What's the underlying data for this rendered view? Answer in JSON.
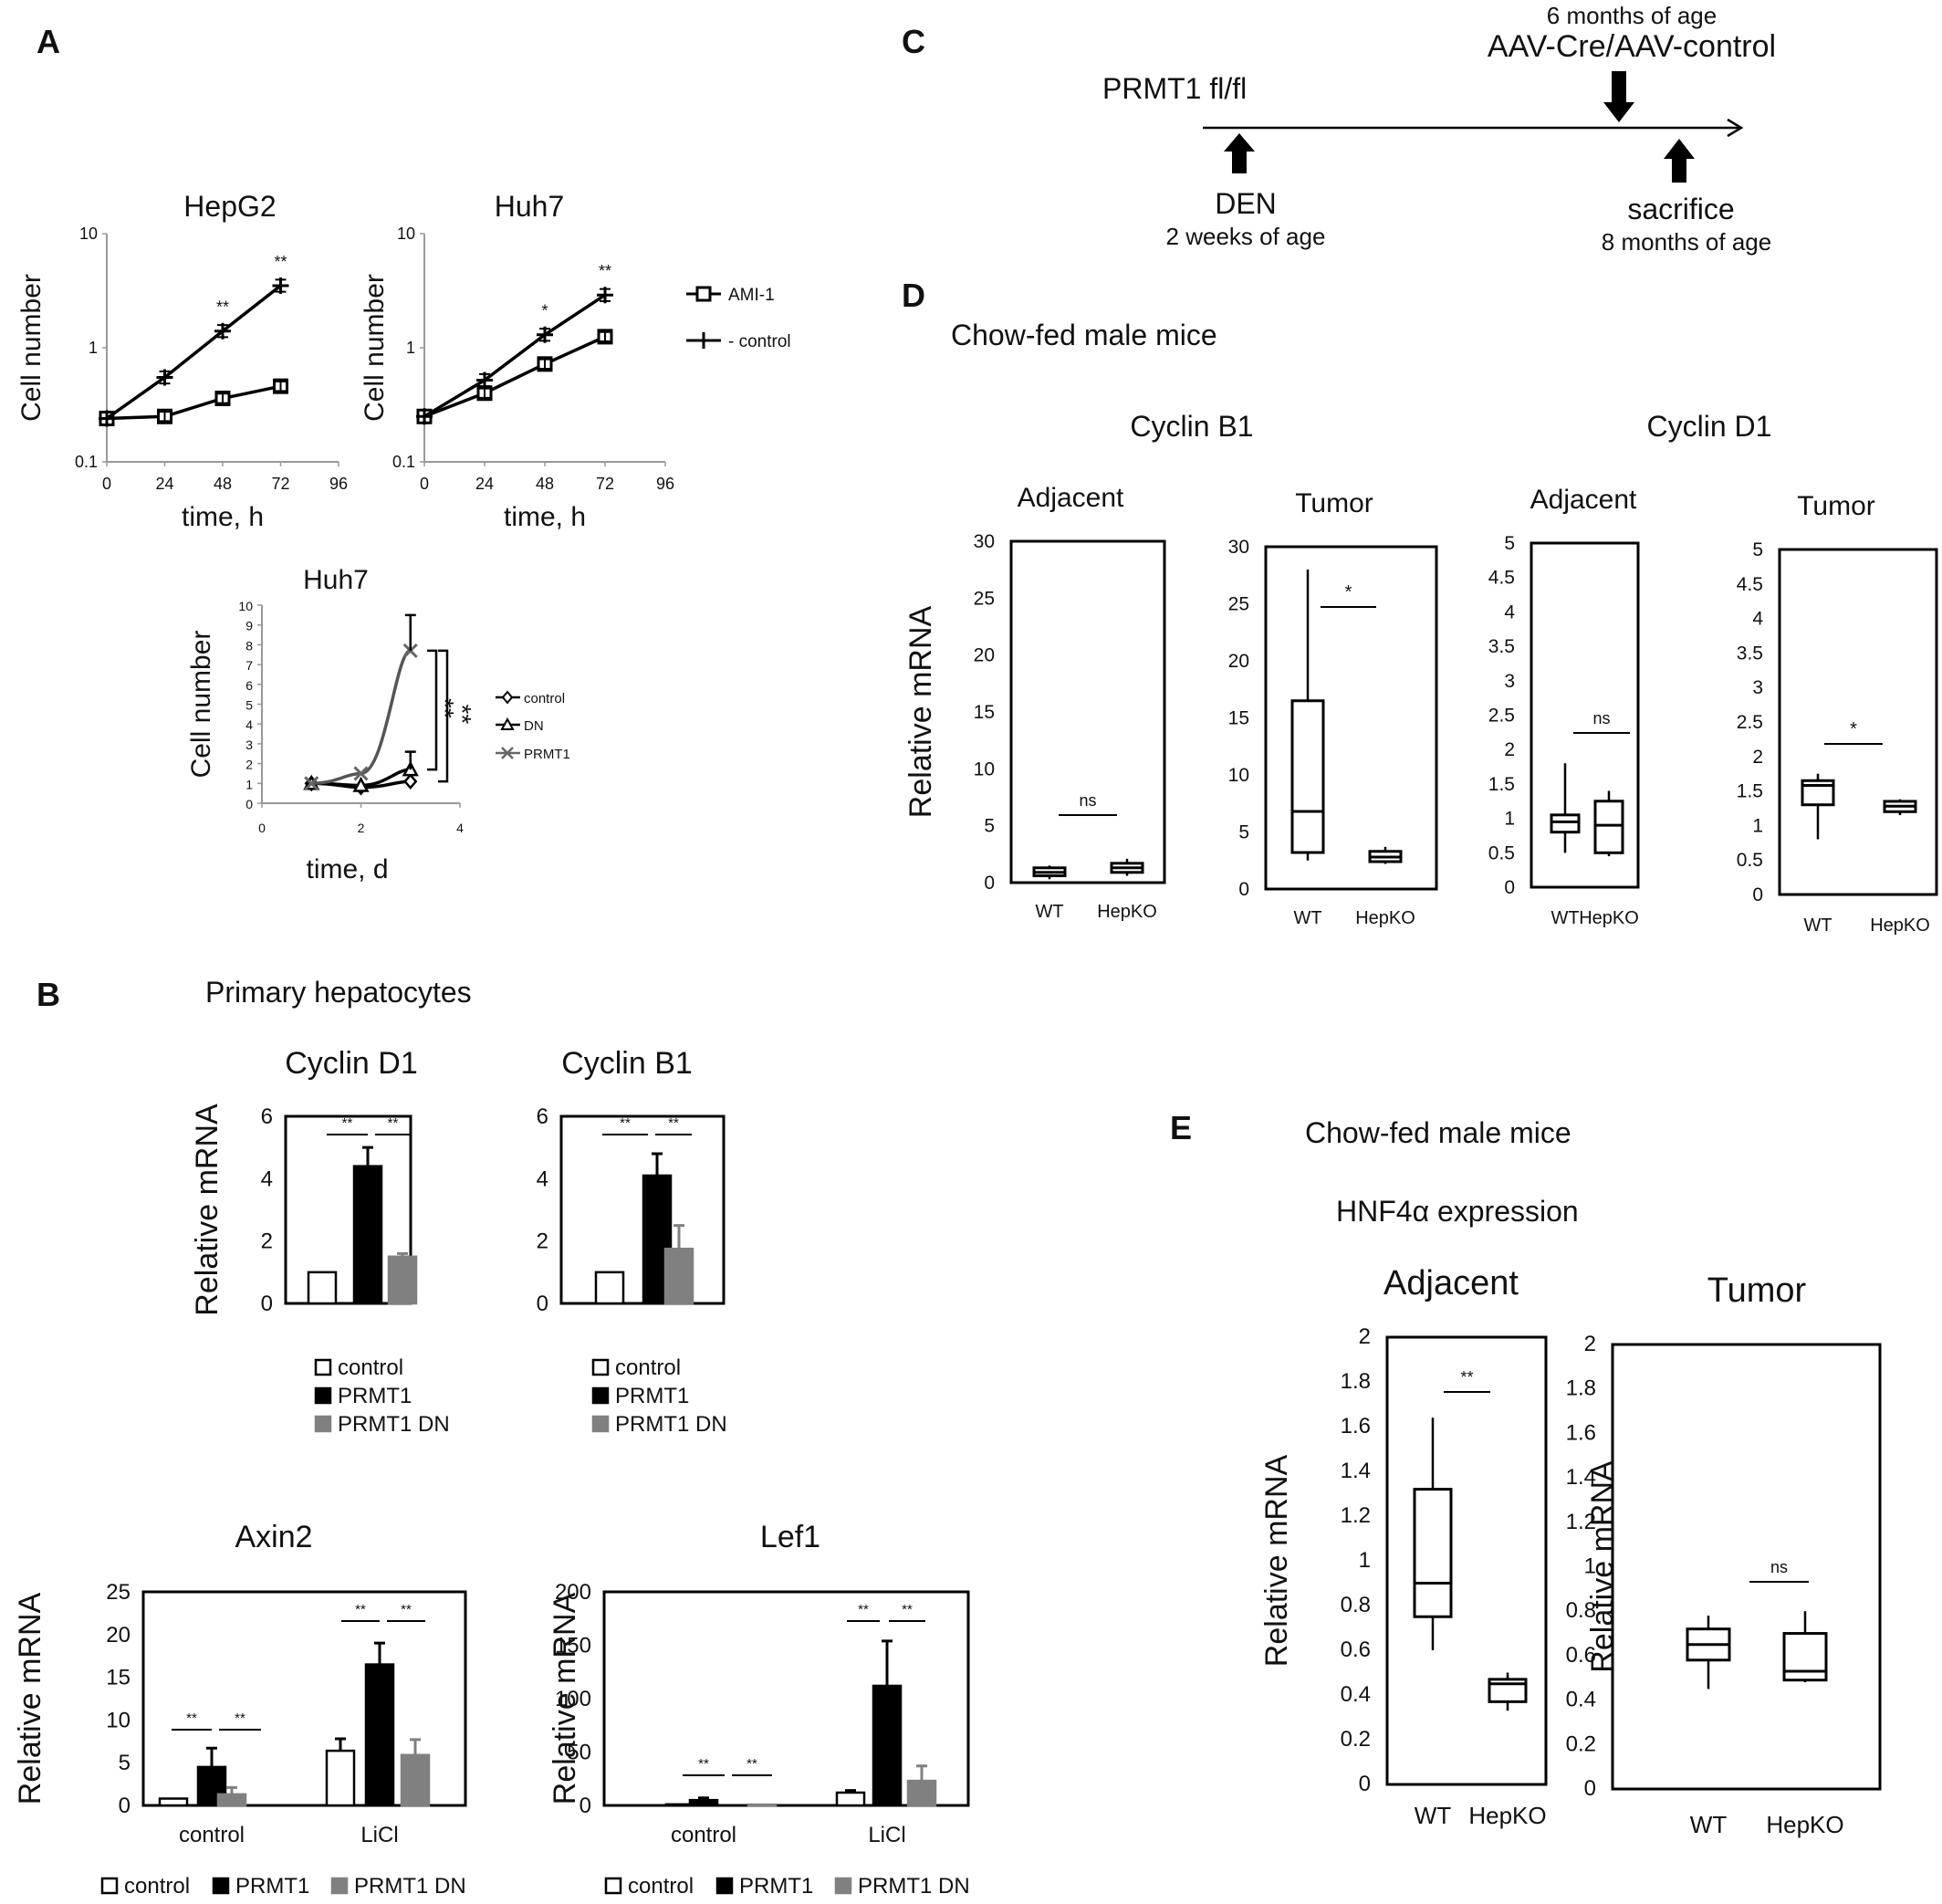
{
  "panels": {
    "A": "A",
    "B": "B",
    "C": "C",
    "D": "D",
    "E": "E"
  },
  "chart_data": [
    {
      "id": "A1",
      "type": "line",
      "title": "HepG2",
      "xlabel": "time, h",
      "ylabel": "Cell number",
      "yscale": "log",
      "xlim": [
        0,
        96
      ],
      "ylim": [
        0.1,
        10
      ],
      "xticks": [
        "0",
        "24",
        "48",
        "72",
        "96"
      ],
      "yticks": [
        "0.1",
        "1",
        "10"
      ],
      "x": [
        0,
        24,
        48,
        72
      ],
      "series": [
        {
          "name": "AMI-1",
          "values": [
            0.24,
            0.25,
            0.36,
            0.46
          ],
          "marker": "square"
        },
        {
          "name": "- control",
          "values": [
            0.24,
            0.55,
            1.4,
            3.5
          ],
          "marker": "plus"
        }
      ],
      "annotations": [
        "**",
        "**"
      ],
      "legend": "right"
    },
    {
      "id": "A2",
      "type": "line",
      "title": "Huh7",
      "xlabel": "time, h",
      "ylabel": "Cell number",
      "yscale": "log",
      "xlim": [
        0,
        96
      ],
      "ylim": [
        0.1,
        10
      ],
      "xticks": [
        "0",
        "24",
        "48",
        "72",
        "96"
      ],
      "yticks": [
        "0.1",
        "1",
        "10"
      ],
      "x": [
        0,
        24,
        48,
        72
      ],
      "series": [
        {
          "name": "AMI-1",
          "values": [
            0.25,
            0.4,
            0.72,
            1.25
          ],
          "marker": "square"
        },
        {
          "name": "- control",
          "values": [
            0.25,
            0.52,
            1.3,
            2.9
          ],
          "marker": "plus"
        }
      ],
      "annotations": [
        "*",
        "**"
      ]
    },
    {
      "id": "A3",
      "type": "line",
      "title": "Huh7",
      "xlabel": "time, d",
      "ylabel": "Cell number",
      "xlim": [
        0,
        4
      ],
      "ylim": [
        0,
        10
      ],
      "xticks": [
        "0",
        "2",
        "4"
      ],
      "yticks": [
        "0",
        "1",
        "2",
        "3",
        "4",
        "5",
        "6",
        "7",
        "8",
        "9",
        "10"
      ],
      "x": [
        1,
        2,
        3
      ],
      "series": [
        {
          "name": "control",
          "values": [
            1.0,
            0.8,
            1.1
          ],
          "marker": "diamond"
        },
        {
          "name": "DN",
          "values": [
            1.0,
            0.9,
            1.7
          ],
          "marker": "triangle"
        },
        {
          "name": "PRMT1",
          "values": [
            1.0,
            1.5,
            7.7
          ],
          "marker": "cross"
        }
      ],
      "annotations": [
        "**",
        "**"
      ],
      "legend": "right"
    },
    {
      "id": "B1",
      "type": "bar",
      "title": "Cyclin D1",
      "ylabel": "Relative mRNA",
      "ylim": [
        0,
        6
      ],
      "yticks": [
        "0",
        "2",
        "4",
        "6"
      ],
      "series": [
        {
          "name": "control",
          "values": [
            1.0
          ],
          "errors": [
            0
          ]
        },
        {
          "name": "PRMT1",
          "values": [
            4.4
          ],
          "errors": [
            0.6
          ]
        },
        {
          "name": "PRMT1 DN",
          "values": [
            1.5
          ],
          "errors": [
            0.1
          ]
        }
      ],
      "annotations": [
        "**",
        "**"
      ]
    },
    {
      "id": "B2",
      "type": "bar",
      "title": "Cyclin B1",
      "ylim": [
        0,
        6
      ],
      "yticks": [
        "0",
        "2",
        "4",
        "6"
      ],
      "series": [
        {
          "name": "control",
          "values": [
            1.0
          ],
          "errors": [
            0
          ]
        },
        {
          "name": "PRMT1",
          "values": [
            4.1
          ],
          "errors": [
            0.7
          ]
        },
        {
          "name": "PRMT1 DN",
          "values": [
            1.75
          ],
          "errors": [
            0.75
          ]
        }
      ],
      "annotations": [
        "**",
        "**"
      ]
    },
    {
      "id": "B3",
      "type": "bar",
      "title": "Axin2",
      "ylabel": "Relative mRNA",
      "ylim": [
        0,
        25
      ],
      "yticks": [
        "0",
        "5",
        "10",
        "15",
        "20",
        "25"
      ],
      "categories": [
        "control",
        "LiCl"
      ],
      "series": [
        {
          "name": "control",
          "values": [
            0.8,
            6.4
          ],
          "errors": [
            0,
            1.4
          ]
        },
        {
          "name": "PRMT1",
          "values": [
            4.5,
            16.5
          ],
          "errors": [
            2.2,
            2.5
          ]
        },
        {
          "name": "PRMT1 DN",
          "values": [
            1.3,
            5.9
          ],
          "errors": [
            0.8,
            1.8
          ]
        }
      ],
      "annotations": [
        "**",
        "**",
        "**",
        "**"
      ]
    },
    {
      "id": "B4",
      "type": "bar",
      "title": "Lef1",
      "ylabel": "Relative mRNA",
      "ylim": [
        0,
        200
      ],
      "yticks": [
        "0",
        "50",
        "100",
        "150",
        "200"
      ],
      "categories": [
        "control",
        "LiCl"
      ],
      "series": [
        {
          "name": "control",
          "values": [
            1.0,
            12
          ],
          "errors": [
            0,
            2
          ]
        },
        {
          "name": "PRMT1",
          "values": [
            5.0,
            112
          ],
          "errors": [
            2,
            42
          ]
        },
        {
          "name": "PRMT1 DN",
          "values": [
            0.8,
            23
          ],
          "errors": [
            0,
            14
          ]
        }
      ],
      "annotations": [
        "**",
        "**",
        "**",
        "**"
      ]
    },
    {
      "id": "D1",
      "type": "box",
      "title": "Adjacent",
      "ylabel": "Relative mRNA",
      "ylim": [
        0,
        30
      ],
      "yticks": [
        "0",
        "5",
        "10",
        "15",
        "20",
        "25",
        "30"
      ],
      "categories": [
        "WT",
        "HepKO"
      ],
      "boxes": [
        {
          "min": 0.3,
          "q1": 0.6,
          "median": 0.9,
          "q3": 1.3,
          "max": 1.5
        },
        {
          "min": 0.6,
          "q1": 0.9,
          "median": 1.3,
          "q3": 1.7,
          "max": 2.1
        }
      ],
      "annotation": "ns"
    },
    {
      "id": "D2",
      "type": "box",
      "title": "Tumor",
      "ylim": [
        0,
        30
      ],
      "yticks": [
        "0",
        "5",
        "10",
        "15",
        "20",
        "25",
        "30"
      ],
      "categories": [
        "WT",
        "HepKO"
      ],
      "boxes": [
        {
          "min": 2.5,
          "q1": 3.2,
          "median": 6.8,
          "q3": 16.5,
          "max": 28
        },
        {
          "min": 2.2,
          "q1": 2.4,
          "median": 2.8,
          "q3": 3.3,
          "max": 3.7
        }
      ],
      "annotation": "*"
    },
    {
      "id": "D3",
      "type": "box",
      "title": "Adjacent",
      "ylim": [
        0,
        5
      ],
      "yticks": [
        "0",
        "0.5",
        "1",
        "1.5",
        "2",
        "2.5",
        "3",
        "3.5",
        "4",
        "4.5",
        "5"
      ],
      "categories": [
        "WT",
        "HepKO"
      ],
      "boxes": [
        {
          "min": 0.5,
          "q1": 0.8,
          "median": 0.95,
          "q3": 1.05,
          "max": 1.8
        },
        {
          "min": 0.45,
          "q1": 0.5,
          "median": 0.9,
          "q3": 1.25,
          "max": 1.4
        }
      ],
      "annotation": "ns"
    },
    {
      "id": "D4",
      "type": "box",
      "title": "Tumor",
      "ylim": [
        0,
        5
      ],
      "yticks": [
        "0",
        "0.5",
        "1",
        "1.5",
        "2",
        "2.5",
        "3",
        "3.5",
        "4",
        "4.5",
        "5"
      ],
      "categories": [
        "WT",
        "HepKO"
      ],
      "boxes": [
        {
          "min": 0.8,
          "q1": 1.3,
          "median": 1.58,
          "q3": 1.65,
          "max": 1.75
        },
        {
          "min": 1.15,
          "q1": 1.2,
          "median": 1.28,
          "q3": 1.35,
          "max": 1.38
        }
      ],
      "annotation": "*"
    },
    {
      "id": "E1",
      "type": "box",
      "title": "Adjacent",
      "ylabel": "Relative mRNA",
      "ylim": [
        0,
        2
      ],
      "yticks": [
        "0",
        "0.2",
        "0.4",
        "0.6",
        "0.8",
        "1",
        "1.2",
        "1.4",
        "1.6",
        "1.8",
        "2"
      ],
      "categories": [
        "WT",
        "HepKO"
      ],
      "boxes": [
        {
          "min": 0.6,
          "q1": 0.75,
          "median": 0.9,
          "q3": 1.32,
          "max": 1.64
        },
        {
          "min": 0.33,
          "q1": 0.37,
          "median": 0.45,
          "q3": 0.47,
          "max": 0.5
        }
      ],
      "annotation": "**"
    },
    {
      "id": "E2",
      "type": "box",
      "title": "Tumor",
      "ylabel": "Relative mRNA",
      "ylim": [
        0,
        2
      ],
      "yticks": [
        "0",
        "0.2",
        "0.4",
        "0.6",
        "0.8",
        "1",
        "1.2",
        "1.4",
        "1.6",
        "1.8",
        "2"
      ],
      "categories": [
        "WT",
        "HepKO"
      ],
      "boxes": [
        {
          "min": 0.45,
          "q1": 0.58,
          "median": 0.65,
          "q3": 0.72,
          "max": 0.78
        },
        {
          "min": 0.48,
          "q1": 0.49,
          "median": 0.53,
          "q3": 0.7,
          "max": 0.8
        }
      ],
      "annotation": "ns"
    }
  ],
  "panel_b": {
    "heading": "Primary hepatocytes"
  },
  "panel_c": {
    "strain": "PRMT1 fl/fl",
    "den": "DEN",
    "den_age": "2 weeks of age",
    "aav_age": "6 months of age",
    "aav": "AAV-Cre/AAV-control",
    "sac": "sacrifice",
    "sac_age": "8 months of age"
  },
  "panel_d": {
    "heading": "Chow-fed male mice",
    "title_left": "Cyclin B1",
    "title_right": "Cyclin D1"
  },
  "panel_e": {
    "heading": "Chow-fed male mice",
    "subheading": "HNF4α expression"
  },
  "colors": {
    "control": "#ffffff",
    "PRMT1": "#000000",
    "PRMT1_DN": "#808080",
    "prmt1_line": "#555555"
  }
}
